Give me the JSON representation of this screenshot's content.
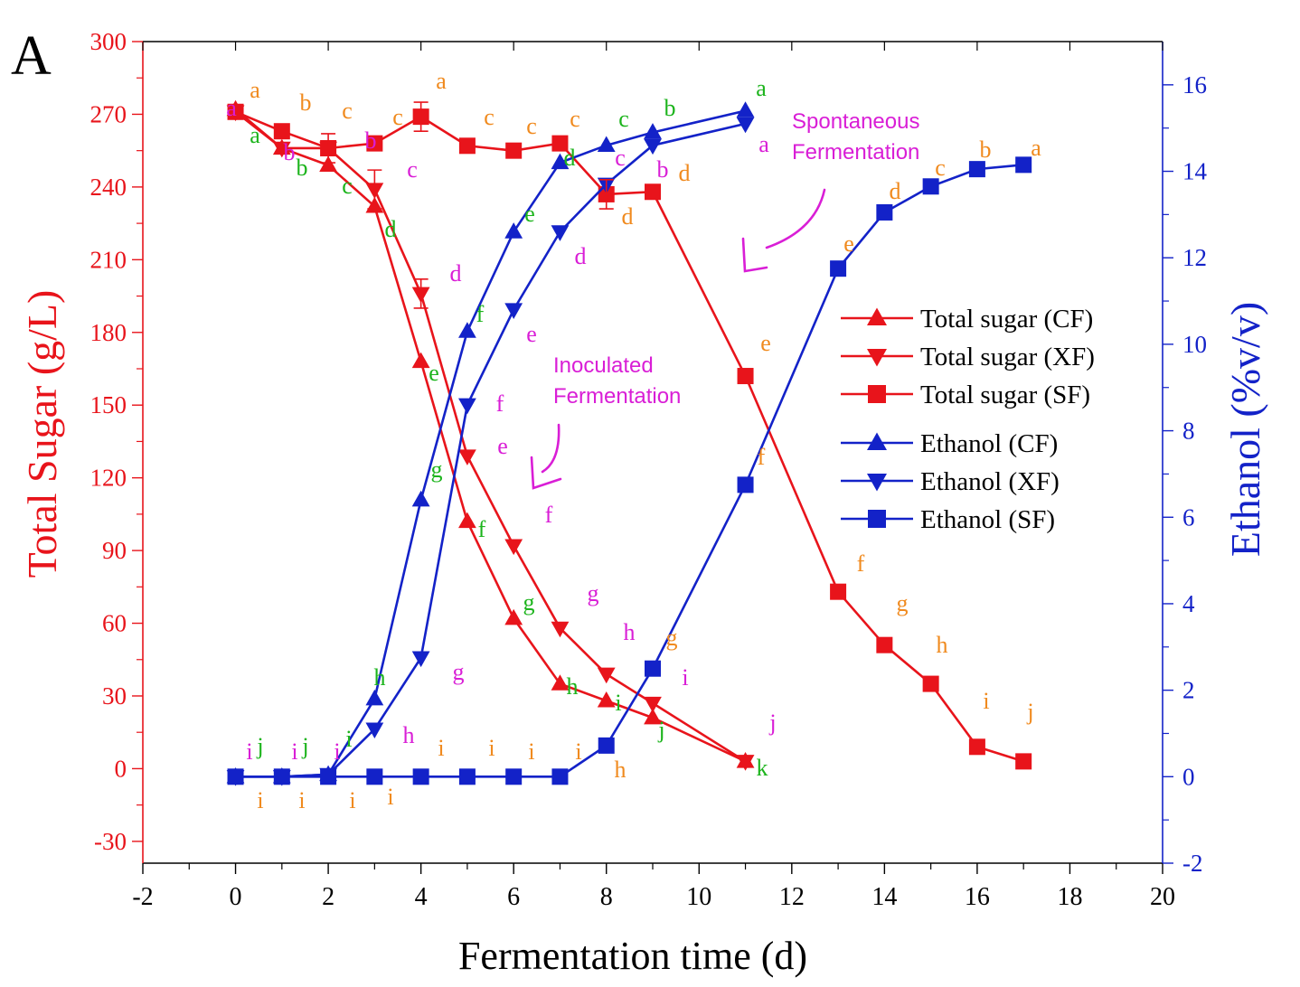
{
  "panel_label": "A",
  "chart_data": {
    "type": "line",
    "x_label": "Fermentation time (d)",
    "y_left_label": "Total Sugar (g/L)",
    "y_right_label": "Ethanol (%v/v)",
    "x_range": [
      -2,
      20
    ],
    "x_ticks": [
      -2,
      0,
      2,
      4,
      6,
      8,
      10,
      12,
      14,
      16,
      18,
      20
    ],
    "y_left_range": [
      -39,
      300
    ],
    "y_left_ticks": [
      -30,
      0,
      30,
      60,
      90,
      120,
      150,
      180,
      210,
      240,
      270,
      300
    ],
    "y_right_range": [
      -2,
      17
    ],
    "y_right_ticks": [
      -2,
      0,
      2,
      4,
      6,
      8,
      10,
      12,
      14,
      16
    ],
    "colors": {
      "sugar": "#e8141b",
      "ethanol": "#1322c8",
      "left_axis": "#e8141b",
      "right_axis": "#1322c8",
      "letters_orange": "#f08a1e",
      "letters_green": "#1cb41c",
      "letters_magenta": "#d91ed6"
    },
    "series": [
      {
        "name": "Total sugar (CF)",
        "axis": "left",
        "marker": "triangle-up",
        "color": "#e8141b",
        "x": [
          0,
          1,
          2,
          3,
          4,
          5,
          6,
          7,
          8,
          9,
          11
        ],
        "y": [
          272,
          256,
          249,
          232,
          168,
          102,
          62,
          35,
          28,
          21,
          3
        ]
      },
      {
        "name": "Total sugar (XF)",
        "axis": "left",
        "marker": "triangle-down",
        "color": "#e8141b",
        "x": [
          0,
          1,
          2,
          3,
          4,
          5,
          6,
          7,
          8,
          9,
          11
        ],
        "y": [
          271,
          256,
          256,
          239,
          196,
          129,
          92,
          58,
          39,
          27,
          3
        ]
      },
      {
        "name": "Total sugar (SF)",
        "axis": "left",
        "marker": "square",
        "color": "#e8141b",
        "x": [
          0,
          1,
          2,
          3,
          4,
          5,
          6,
          7,
          8,
          9,
          11,
          13,
          14,
          15,
          16,
          17
        ],
        "y": [
          271,
          263,
          256,
          258,
          269,
          257,
          255,
          258,
          237,
          238,
          162,
          73,
          51,
          35,
          9,
          3
        ]
      },
      {
        "name": "Ethanol (CF)",
        "axis": "right",
        "marker": "triangle-up",
        "color": "#1322c8",
        "x": [
          0,
          1,
          2,
          3,
          4,
          5,
          6,
          7,
          8,
          9,
          11
        ],
        "y": [
          0,
          0,
          0.05,
          1.8,
          6.4,
          10.3,
          12.6,
          14.2,
          14.6,
          14.9,
          15.4
        ]
      },
      {
        "name": "Ethanol (XF)",
        "axis": "right",
        "marker": "triangle-down",
        "color": "#1322c8",
        "x": [
          0,
          1,
          2,
          3,
          4,
          5,
          6,
          7,
          8,
          9,
          11
        ],
        "y": [
          0,
          0,
          0.05,
          1.1,
          2.75,
          8.6,
          10.8,
          12.6,
          13.7,
          14.6,
          15.1
        ]
      },
      {
        "name": "Ethanol (SF)",
        "axis": "right",
        "marker": "square",
        "color": "#1322c8",
        "x": [
          0,
          1,
          2,
          3,
          4,
          5,
          6,
          7,
          8,
          9,
          11,
          13,
          14,
          15,
          16,
          17
        ],
        "y": [
          0,
          0,
          0,
          0,
          0,
          0,
          0,
          0,
          0.72,
          2.5,
          6.75,
          11.75,
          13.05,
          13.65,
          14.05,
          14.15
        ]
      }
    ],
    "error_bars": [
      {
        "series": "Total sugar (SF)",
        "x": 4,
        "y": 269,
        "err": 6
      },
      {
        "series": "Total sugar (XF)",
        "x": 4,
        "y": 196,
        "err": 6
      },
      {
        "series": "Total sugar (XF)",
        "x": 3,
        "y": 239,
        "err": 8
      },
      {
        "series": "Total sugar (SF)",
        "x": 8,
        "y": 237,
        "err": 6
      },
      {
        "series": "Total sugar (SF)",
        "x": 2,
        "y": 256,
        "err": 6
      }
    ],
    "legend": {
      "position": "right-middle",
      "entries": [
        "Total sugar (CF)",
        "Total sugar (XF)",
        "Total sugar (SF)",
        "Ethanol (CF)",
        "Ethanol (XF)",
        "Ethanol (SF)"
      ]
    },
    "annotations": [
      {
        "text": "Spontaneous\nFermentation",
        "color": "#d91ed6"
      },
      {
        "text": "Inoculated\nFermentation",
        "color": "#d91ed6"
      }
    ],
    "significance_letters": [
      {
        "t": "a",
        "c": "#f08a1e",
        "x": 282,
        "y": 108
      },
      {
        "t": "a",
        "c": "#d91ed6",
        "x": 256,
        "y": 128
      },
      {
        "t": "a",
        "c": "#1cb41c",
        "x": 282,
        "y": 158
      },
      {
        "t": "b",
        "c": "#f08a1e",
        "x": 338,
        "y": 122
      },
      {
        "t": "b",
        "c": "#d91ed6",
        "x": 320,
        "y": 177
      },
      {
        "t": "b",
        "c": "#1cb41c",
        "x": 334,
        "y": 194
      },
      {
        "t": "c",
        "c": "#f08a1e",
        "x": 384,
        "y": 131
      },
      {
        "t": "b",
        "c": "#d91ed6",
        "x": 410,
        "y": 164
      },
      {
        "t": "c",
        "c": "#1cb41c",
        "x": 384,
        "y": 214
      },
      {
        "t": "c",
        "c": "#f08a1e",
        "x": 440,
        "y": 138
      },
      {
        "t": "c",
        "c": "#d91ed6",
        "x": 456,
        "y": 196
      },
      {
        "t": "d",
        "c": "#1cb41c",
        "x": 432,
        "y": 262
      },
      {
        "t": "a",
        "c": "#f08a1e",
        "x": 488,
        "y": 98
      },
      {
        "t": "d",
        "c": "#d91ed6",
        "x": 504,
        "y": 311
      },
      {
        "t": "e",
        "c": "#1cb41c",
        "x": 480,
        "y": 421
      },
      {
        "t": "c",
        "c": "#f08a1e",
        "x": 541,
        "y": 138
      },
      {
        "t": "f",
        "c": "#1cb41c",
        "x": 531,
        "y": 356
      },
      {
        "t": "f",
        "c": "#d91ed6",
        "x": 553,
        "y": 455
      },
      {
        "t": "e",
        "c": "#d91ed6",
        "x": 556,
        "y": 502
      },
      {
        "t": "f",
        "c": "#1cb41c",
        "x": 533,
        "y": 594
      },
      {
        "t": "g",
        "c": "#1cb41c",
        "x": 483,
        "y": 528
      },
      {
        "t": "c",
        "c": "#f08a1e",
        "x": 588,
        "y": 148
      },
      {
        "t": "e",
        "c": "#1cb41c",
        "x": 586,
        "y": 245
      },
      {
        "t": "e",
        "c": "#d91ed6",
        "x": 588,
        "y": 378
      },
      {
        "t": "f",
        "c": "#d91ed6",
        "x": 607,
        "y": 578
      },
      {
        "t": "g",
        "c": "#1cb41c",
        "x": 585,
        "y": 675
      },
      {
        "t": "c",
        "c": "#f08a1e",
        "x": 636,
        "y": 140
      },
      {
        "t": "d",
        "c": "#1cb41c",
        "x": 630,
        "y": 183
      },
      {
        "t": "d",
        "c": "#d91ed6",
        "x": 642,
        "y": 292
      },
      {
        "t": "g",
        "c": "#d91ed6",
        "x": 656,
        "y": 665
      },
      {
        "t": "h",
        "c": "#1cb41c",
        "x": 633,
        "y": 768
      },
      {
        "t": "c",
        "c": "#1cb41c",
        "x": 690,
        "y": 140
      },
      {
        "t": "c",
        "c": "#d91ed6",
        "x": 686,
        "y": 183
      },
      {
        "t": "d",
        "c": "#f08a1e",
        "x": 694,
        "y": 248
      },
      {
        "t": "h",
        "c": "#d91ed6",
        "x": 696,
        "y": 708
      },
      {
        "t": "i",
        "c": "#1cb41c",
        "x": 684,
        "y": 786
      },
      {
        "t": "b",
        "c": "#1cb41c",
        "x": 741,
        "y": 128
      },
      {
        "t": "b",
        "c": "#d91ed6",
        "x": 733,
        "y": 196
      },
      {
        "t": "d",
        "c": "#f08a1e",
        "x": 757,
        "y": 200
      },
      {
        "t": "g",
        "c": "#f08a1e",
        "x": 743,
        "y": 714
      },
      {
        "t": "i",
        "c": "#d91ed6",
        "x": 758,
        "y": 758
      },
      {
        "t": "j",
        "c": "#1cb41c",
        "x": 732,
        "y": 816
      },
      {
        "t": "a",
        "c": "#1cb41c",
        "x": 842,
        "y": 106
      },
      {
        "t": "a",
        "c": "#d91ed6",
        "x": 845,
        "y": 168
      },
      {
        "t": "e",
        "c": "#f08a1e",
        "x": 847,
        "y": 388
      },
      {
        "t": "f",
        "c": "#f08a1e",
        "x": 842,
        "y": 514
      },
      {
        "t": "j",
        "c": "#d91ed6",
        "x": 855,
        "y": 808
      },
      {
        "t": "k",
        "c": "#1cb41c",
        "x": 843,
        "y": 858
      },
      {
        "t": "f",
        "c": "#f08a1e",
        "x": 952,
        "y": 632
      },
      {
        "t": "e",
        "c": "#f08a1e",
        "x": 939,
        "y": 278
      },
      {
        "t": "g",
        "c": "#f08a1e",
        "x": 998,
        "y": 676
      },
      {
        "t": "d",
        "c": "#f08a1e",
        "x": 990,
        "y": 220
      },
      {
        "t": "h",
        "c": "#f08a1e",
        "x": 1042,
        "y": 722
      },
      {
        "t": "c",
        "c": "#f08a1e",
        "x": 1040,
        "y": 194
      },
      {
        "t": "i",
        "c": "#f08a1e",
        "x": 1091,
        "y": 784
      },
      {
        "t": "b",
        "c": "#f08a1e",
        "x": 1090,
        "y": 174
      },
      {
        "t": "j",
        "c": "#f08a1e",
        "x": 1140,
        "y": 796
      },
      {
        "t": "a",
        "c": "#f08a1e",
        "x": 1146,
        "y": 172
      },
      {
        "t": "i",
        "c": "#d91ed6",
        "x": 276,
        "y": 840
      },
      {
        "t": "j",
        "c": "#1cb41c",
        "x": 288,
        "y": 834
      },
      {
        "t": "i",
        "c": "#d91ed6",
        "x": 326,
        "y": 840
      },
      {
        "t": "j",
        "c": "#1cb41c",
        "x": 338,
        "y": 834
      },
      {
        "t": "i",
        "c": "#d91ed6",
        "x": 373,
        "y": 840
      },
      {
        "t": "i",
        "c": "#1cb41c",
        "x": 386,
        "y": 826
      },
      {
        "t": "h",
        "c": "#1cb41c",
        "x": 420,
        "y": 758
      },
      {
        "t": "h",
        "c": "#d91ed6",
        "x": 452,
        "y": 822
      },
      {
        "t": "g",
        "c": "#d91ed6",
        "x": 507,
        "y": 752
      },
      {
        "t": "i",
        "c": "#f08a1e",
        "x": 288,
        "y": 894
      },
      {
        "t": "i",
        "c": "#f08a1e",
        "x": 334,
        "y": 894
      },
      {
        "t": "i",
        "c": "#f08a1e",
        "x": 390,
        "y": 894
      },
      {
        "t": "i",
        "c": "#f08a1e",
        "x": 432,
        "y": 890
      },
      {
        "t": "i",
        "c": "#f08a1e",
        "x": 488,
        "y": 836
      },
      {
        "t": "i",
        "c": "#f08a1e",
        "x": 544,
        "y": 836
      },
      {
        "t": "i",
        "c": "#f08a1e",
        "x": 588,
        "y": 840
      },
      {
        "t": "i",
        "c": "#f08a1e",
        "x": 640,
        "y": 840
      },
      {
        "t": "h",
        "c": "#f08a1e",
        "x": 686,
        "y": 860
      }
    ]
  }
}
